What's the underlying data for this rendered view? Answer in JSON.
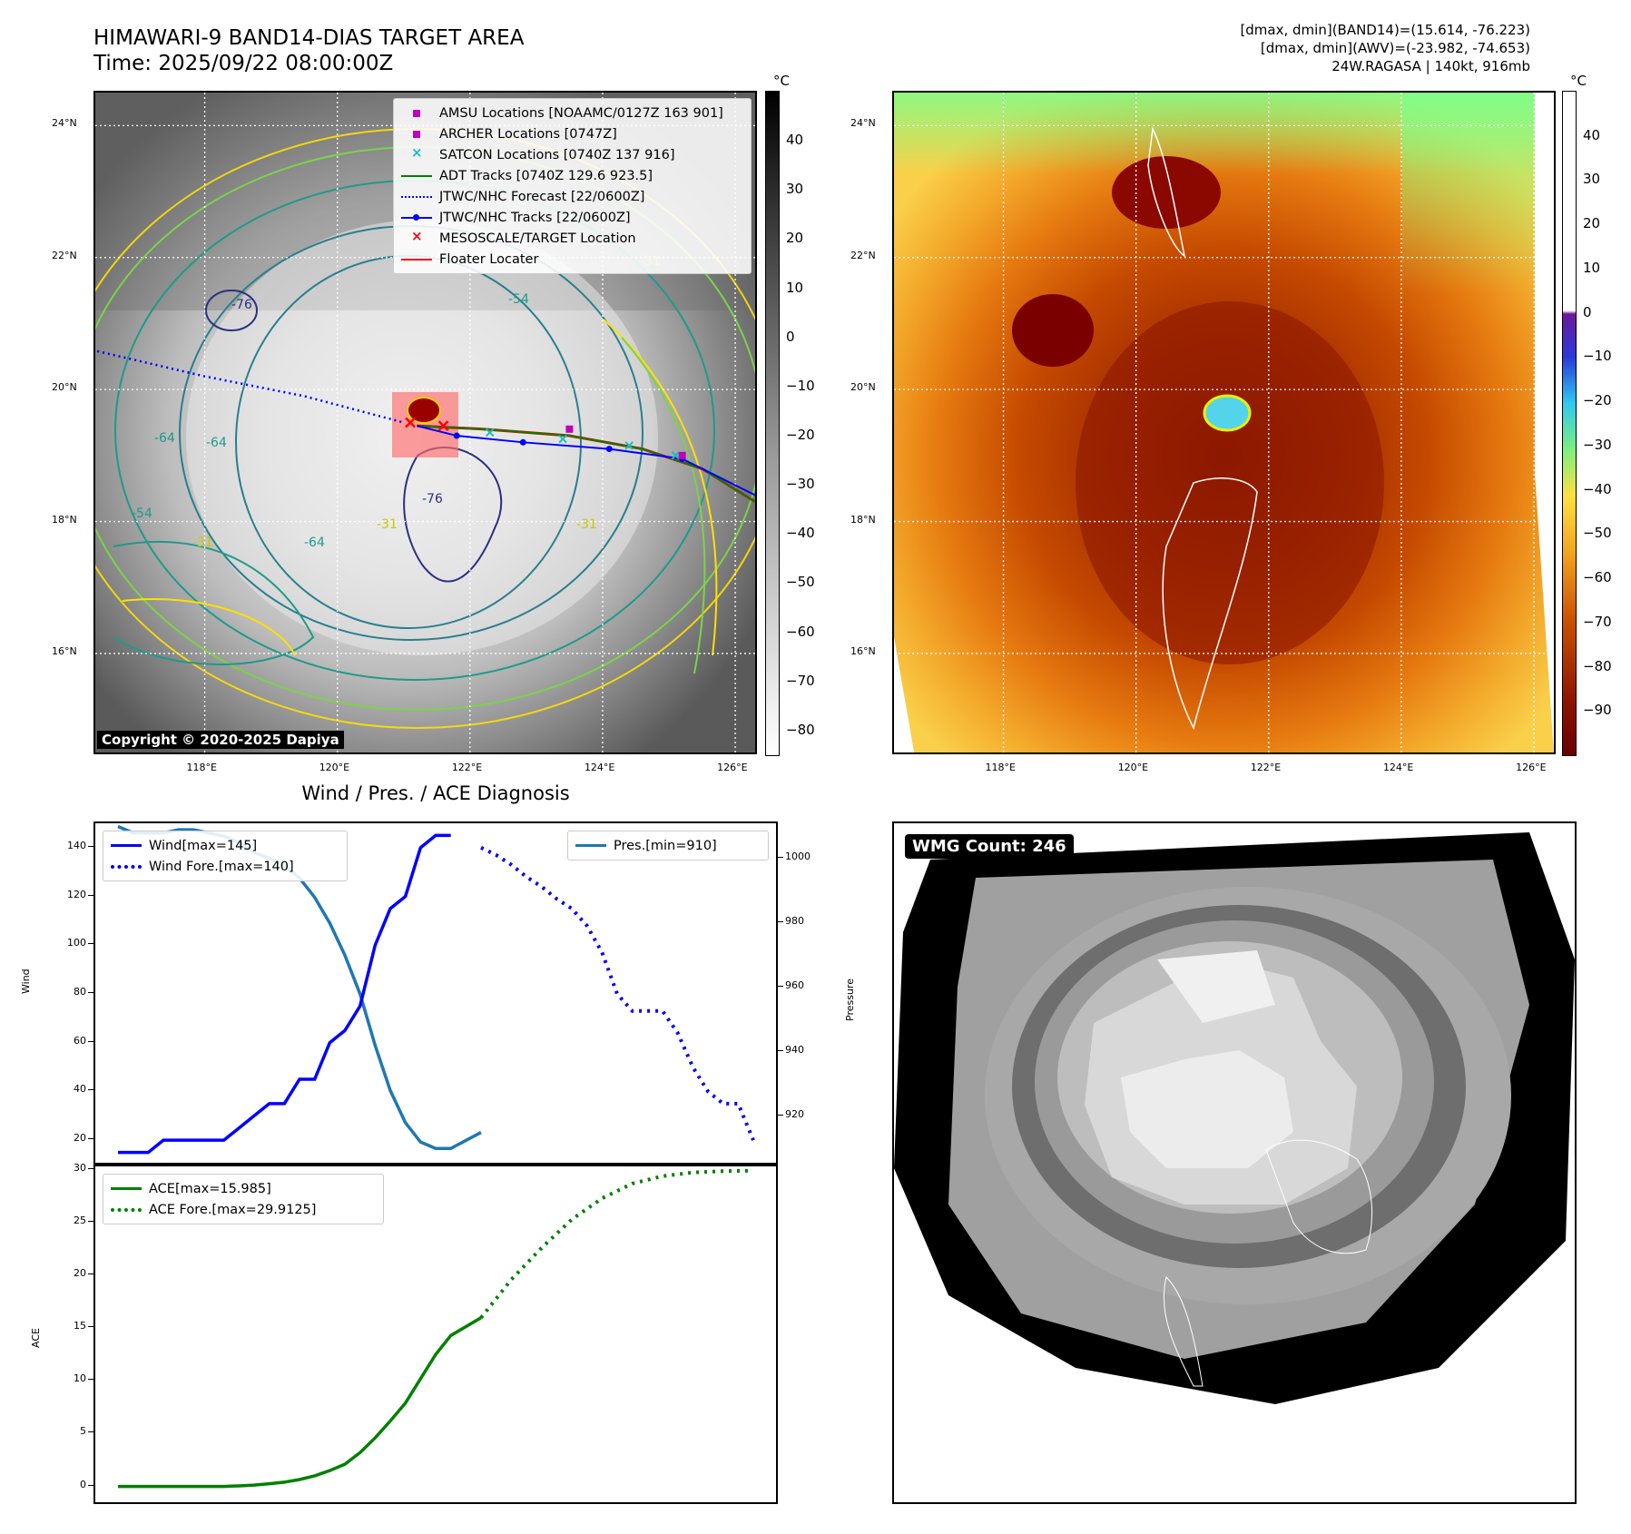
{
  "header": {
    "title_line1": "HIMAWARI-9 BAND14-DIAS TARGET AREA",
    "title_line2": "Time: 2025/09/22 08:00:00Z",
    "info_line1": "[dmax, dmin](BAND14)=(15.614, -76.223)",
    "info_line2": "[dmax, dmin](AWV)=(-23.982, -74.653)",
    "info_line3": "24W.RAGASA | 140kt, 916mb"
  },
  "map": {
    "lat_labels": [
      "24°N",
      "22°N",
      "20°N",
      "18°N",
      "16°N"
    ],
    "lat_values": [
      24,
      22,
      20,
      18,
      16
    ],
    "lon_labels": [
      "118°E",
      "120°E",
      "122°E",
      "124°E",
      "126°E"
    ],
    "lon_values": [
      118,
      120,
      122,
      124,
      126
    ],
    "lon_range": [
      116.35,
      126.3
    ],
    "lat_range": [
      14.5,
      24.5
    ],
    "copyright": "Copyright © 2020-2025 Dapiya",
    "contour_labels": [
      "-76",
      "-76",
      "-64",
      "-64",
      "-54",
      "-54",
      "-31",
      "-31",
      "-31",
      "-64",
      "-31"
    ],
    "legend": [
      {
        "label": "AMSU Locations [NOAAMC/0127Z 163 901]",
        "type": "square",
        "color": "#bf00bf"
      },
      {
        "label": "ARCHER Locations [0747Z]",
        "type": "square",
        "color": "#bf00bf"
      },
      {
        "label": "SATCON Locations [0740Z 137 916]",
        "type": "x",
        "color": "#17bfbf"
      },
      {
        "label": "ADT Tracks [0740Z 129.6 923.5]",
        "type": "line",
        "color": "#008000"
      },
      {
        "label": "JTWC/NHC Forecast [22/0600Z]",
        "type": "dotted",
        "color": "#0000ff"
      },
      {
        "label": "JTWC/NHC Tracks [22/0600Z]",
        "type": "line-dot",
        "color": "#0000ff"
      },
      {
        "label": "MESOSCALE/TARGET Location",
        "type": "x",
        "color": "#ff0000"
      },
      {
        "label": "Floater Locater",
        "type": "line",
        "color": "#ff0000"
      }
    ],
    "forecast_track": [
      [
        116.3,
        20.6
      ],
      [
        118,
        20.2
      ],
      [
        119.5,
        19.9
      ],
      [
        121,
        19.5
      ]
    ],
    "best_track": [
      [
        121.2,
        19.45
      ],
      [
        121.8,
        19.3
      ],
      [
        122.8,
        19.2
      ],
      [
        124.1,
        19.1
      ],
      [
        125.2,
        18.95
      ],
      [
        126.3,
        18.4
      ]
    ],
    "adt_track": [
      [
        121.2,
        19.45
      ],
      [
        122.2,
        19.4
      ],
      [
        123.5,
        19.3
      ],
      [
        124.6,
        19.1
      ],
      [
        125.5,
        18.8
      ],
      [
        126.3,
        18.3
      ]
    ]
  },
  "colorbar1": {
    "unit": "°C",
    "ticks": [
      40,
      30,
      20,
      10,
      0,
      -10,
      -20,
      -30,
      -40,
      -50,
      -60,
      -70,
      -80
    ],
    "range": [
      -85,
      50
    ],
    "colors": [
      "#ffffff",
      "#000000"
    ]
  },
  "colorbar2": {
    "unit": "°C",
    "ticks": [
      40,
      30,
      20,
      10,
      0,
      -10,
      -20,
      -30,
      -40,
      -50,
      -60,
      -70,
      -80,
      -90
    ],
    "range": [
      -100,
      50
    ]
  },
  "chart_data": [
    {
      "type": "line",
      "title": "Wind / Pres. / ACE Diagnosis",
      "ylabel": "Wind",
      "ylabel_right": "Pressure",
      "ylim": [
        10,
        150
      ],
      "ylim_right": [
        905,
        1011
      ],
      "yticks": [
        20,
        40,
        60,
        80,
        100,
        120,
        140
      ],
      "yticks_right": [
        920,
        940,
        960,
        980,
        1000
      ],
      "series": [
        {
          "name": "Wind[max=145]",
          "color": "#0000ff",
          "style": "solid",
          "axis": "left",
          "x": [
            0,
            1,
            2,
            3,
            4,
            5,
            6,
            7,
            8,
            9,
            10,
            11,
            12,
            13,
            14,
            15,
            16,
            17,
            18,
            19,
            20,
            21,
            22
          ],
          "values": [
            15,
            15,
            15,
            20,
            20,
            20,
            20,
            20,
            25,
            30,
            35,
            35,
            45,
            45,
            60,
            65,
            75,
            100,
            115,
            120,
            140,
            145,
            145
          ]
        },
        {
          "name": "Wind Fore.[max=140]",
          "color": "#0000ff",
          "style": "dotted",
          "axis": "left",
          "x": [
            24,
            25,
            26,
            27,
            28,
            29,
            30,
            31,
            32,
            33,
            34,
            35,
            36,
            37,
            38,
            39,
            40,
            41,
            42
          ],
          "values": [
            140,
            137,
            133,
            128,
            124,
            119,
            115,
            108,
            97,
            80,
            73,
            73,
            73,
            64,
            50,
            40,
            35,
            35,
            20
          ]
        },
        {
          "name": "Pres.[min=910]",
          "color": "#1f77b4",
          "style": "solid",
          "axis": "right",
          "x": [
            0,
            1,
            2,
            3,
            4,
            5,
            6,
            7,
            8,
            9,
            10,
            11,
            12,
            13,
            14,
            15,
            16,
            17,
            18,
            19,
            20,
            21,
            22,
            24
          ],
          "values": [
            1010,
            1008,
            1008,
            1008,
            1009,
            1009,
            1008,
            1007,
            1005,
            1002,
            1000,
            998,
            994,
            988,
            980,
            970,
            958,
            942,
            928,
            918,
            912,
            910,
            910,
            915
          ]
        },
        {
          "name": "ACE[max=15.985]",
          "color": "#008000",
          "style": "solid",
          "x": [
            0,
            1,
            2,
            3,
            4,
            5,
            6,
            7,
            8,
            9,
            10,
            11,
            12,
            13,
            14,
            15,
            16,
            17,
            18,
            19,
            20,
            21,
            22,
            24
          ],
          "values": [
            0,
            0,
            0,
            0,
            0,
            0,
            0,
            0,
            0.05,
            0.12,
            0.25,
            0.4,
            0.65,
            1.0,
            1.5,
            2.1,
            3.2,
            4.6,
            6.2,
            7.9,
            10.2,
            12.5,
            14.3,
            15.985
          ]
        },
        {
          "name": "ACE Fore.[max=29.9125]",
          "color": "#008000",
          "style": "dotted",
          "x": [
            24,
            26,
            28,
            30,
            32,
            34,
            36,
            38,
            40,
            42
          ],
          "values": [
            15.985,
            19.6,
            22.6,
            25.3,
            27.3,
            28.7,
            29.4,
            29.75,
            29.88,
            29.9125
          ]
        }
      ],
      "ace_ylabel": "ACE",
      "ace_ylim": [
        -1.5,
        30.5
      ],
      "ace_yticks": [
        0,
        5,
        10,
        15,
        20,
        25,
        30
      ],
      "xlim": [
        -1.5,
        43.5
      ]
    }
  ],
  "wmg": {
    "label": "WMG Count: 246"
  }
}
